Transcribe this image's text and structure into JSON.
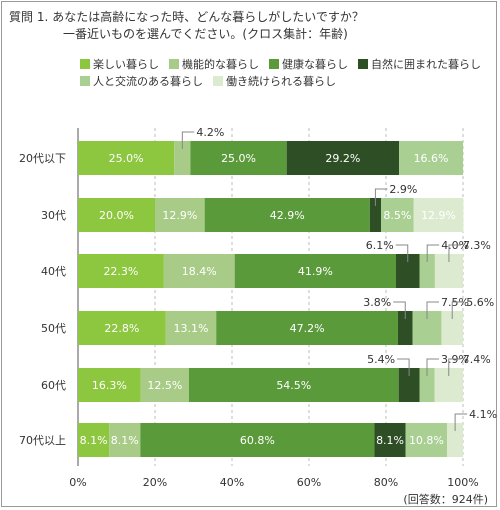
{
  "title": {
    "prefix": "質問 1.",
    "line1": "あなたは高齢になった時、どんな暮らしがしたいですか？",
    "line2": "一番近いものを選んでください。(クロス集計：年齢)"
  },
  "footer": "(回答数：924件)",
  "chart_data": {
    "type": "bar",
    "orientation": "horizontal",
    "stacked": true,
    "categories": [
      "20代以下",
      "30代",
      "40代",
      "50代",
      "60代",
      "70代以上"
    ],
    "series": [
      {
        "name": "楽しい暮らし",
        "color": "#8dc63f",
        "values": [
          25.0,
          20.0,
          22.3,
          22.8,
          16.3,
          8.1
        ]
      },
      {
        "name": "機能的な暮らし",
        "color": "#a8cb87",
        "values": [
          4.2,
          12.9,
          18.4,
          13.1,
          12.5,
          8.1
        ]
      },
      {
        "name": "健康な暮らし",
        "color": "#5a9a3a",
        "values": [
          25.0,
          42.9,
          41.9,
          47.2,
          54.5,
          60.8
        ]
      },
      {
        "name": "自然に囲まれた暮らし",
        "color": "#2e4e26",
        "values": [
          29.2,
          2.9,
          6.1,
          3.8,
          5.4,
          8.1
        ]
      },
      {
        "name": "人と交流のある暮らし",
        "color": "#a9cf92",
        "values": [
          16.6,
          8.5,
          4.0,
          7.5,
          3.9,
          10.8
        ]
      },
      {
        "name": "働き続けられる暮らし",
        "color": "#dcebcf",
        "values": [
          0.0,
          12.9,
          7.3,
          5.6,
          7.4,
          4.1
        ]
      }
    ],
    "xlim": [
      0,
      100
    ],
    "ticks": [
      "0%",
      "20%",
      "40%",
      "60%",
      "80%",
      "100%"
    ],
    "legend_position": "top",
    "grid": "vertical dashed"
  }
}
